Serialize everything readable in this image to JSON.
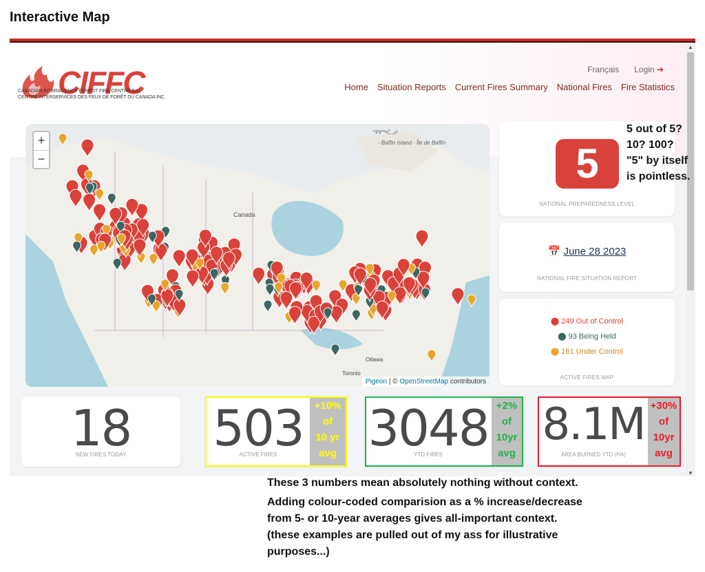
{
  "page_heading": "Interactive Map",
  "header": {
    "org_name_en": "CANADIAN INTERAGENCY FOREST FIRE CENTRE INC.",
    "org_name_fr": "CENTRE INTERSERVICES DES FEUX DE FORÊT DU CANADA INC.",
    "logo_text": "CIFFC",
    "util_links": {
      "language": "Français",
      "login": "Login"
    },
    "nav": [
      "Home",
      "Situation Reports",
      "Current Fires Summary",
      "National Fires",
      "Fire Statistics"
    ]
  },
  "map": {
    "zoom_in": "+",
    "zoom_out": "−",
    "labels": {
      "canada": "Canada",
      "baffin": "- Baffin Island - Île de Baffin",
      "ottawa": "Ottawa",
      "toronto": "Toronto",
      "north": "ᕿᑭᖅᑖᓗᒃ"
    },
    "attribution": {
      "pigeon": "Pigeon",
      "sep": " | © ",
      "osm": "OpenStreetMap",
      "contrib": " contributors"
    },
    "colors": {
      "out_of_control": "#d9423a",
      "being_held": "#3c6662",
      "under_control": "#e8a52a"
    }
  },
  "preparedness": {
    "level": "5",
    "caption": "NATIONAL PREPAREDNESS LEVEL"
  },
  "report": {
    "date": "June 28 2023",
    "caption": "NATIONAL FIRE SITUATION REPORT"
  },
  "active_map": {
    "items": [
      {
        "label": "249 Out of Control",
        "color": "#d9423a"
      },
      {
        "label": "93 Being Held",
        "color": "#3c6662"
      },
      {
        "label": "161 Under Control",
        "color": "#e8a52a"
      }
    ],
    "caption": "ACTIVE FIRES MAP"
  },
  "stats": [
    {
      "value": "18",
      "caption": "NEW FIRES TODAY"
    },
    {
      "value": "503",
      "caption": "ACTIVE FIRES",
      "badge": [
        "+10%",
        "of",
        "10 yr",
        "avg"
      ],
      "badge_color": "#ffff00",
      "frame_color": "#ffff00"
    },
    {
      "value": "3048",
      "caption": "YTD FIRES",
      "badge": [
        "+2%",
        "of",
        "10yr",
        "avg"
      ],
      "badge_color": "#22b14c",
      "frame_color": "#22b14c"
    },
    {
      "value": "8.1M",
      "caption": "AREA BURNED YTD (HA)",
      "badge": [
        "+30%",
        "of",
        "10yr",
        "avg"
      ],
      "badge_color": "#ed1c24",
      "frame_color": "#ed1c24"
    }
  ],
  "annotations": {
    "npl": [
      "5 out of 5?",
      "10?  100?",
      "\"5\" by itself",
      "is pointless."
    ],
    "bottom_first": "These 3 numbers mean absolutely nothing without context.",
    "bottom_rest": [
      "Adding colour-coded comparision as a % increase/decrease",
      "from 5- or 10-year averages gives all-important context.",
      "(these examples are pulled out of my ass for illustrative",
      "purposes...)"
    ]
  }
}
